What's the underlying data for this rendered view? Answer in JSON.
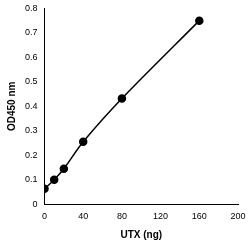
{
  "chart_data": {
    "type": "scatter",
    "x_label": "UTX (ng)",
    "y_label": "OD450 nm",
    "x": [
      0,
      10,
      20,
      40,
      80,
      160
    ],
    "values": [
      0.063,
      0.1,
      0.145,
      0.255,
      0.432,
      0.75
    ],
    "color": "#000000",
    "marker": "circle",
    "line_style": "solid",
    "xlim": [
      0,
      200
    ],
    "xticks": [
      0,
      40,
      80,
      120,
      160,
      200
    ],
    "ylim": [
      0,
      0.8
    ],
    "yticks": [
      0,
      0.1,
      0.2,
      0.3,
      0.4,
      0.5,
      0.6,
      0.7,
      0.8
    ],
    "grid": false
  }
}
